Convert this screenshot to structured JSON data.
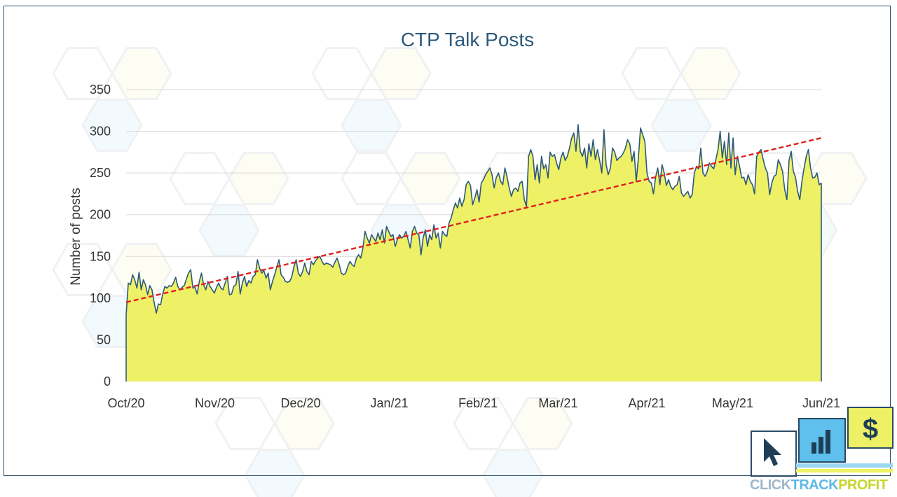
{
  "chart_data": {
    "type": "area",
    "title": "CTP Talk Posts",
    "xlabel": "",
    "ylabel": "Number of posts",
    "x_start": "2020-10-01",
    "x_end": "2021-06-01",
    "x_ticks": [
      {
        "date": "2020-10-01",
        "label": "Oct/20"
      },
      {
        "date": "2020-11-01",
        "label": "Nov/20"
      },
      {
        "date": "2020-12-01",
        "label": "Dec/20"
      },
      {
        "date": "2021-01-01",
        "label": "Jan/21"
      },
      {
        "date": "2021-02-01",
        "label": "Feb/21"
      },
      {
        "date": "2021-03-01",
        "label": "Mar/21"
      },
      {
        "date": "2021-04-01",
        "label": "Apr/21"
      },
      {
        "date": "2021-05-01",
        "label": "May/21"
      },
      {
        "date": "2021-06-01",
        "label": "Jun/21"
      }
    ],
    "ylim": [
      0,
      350
    ],
    "y_ticks": [
      0,
      50,
      100,
      150,
      200,
      250,
      300,
      350
    ],
    "grid": true,
    "legend": "none",
    "area_color": "#eef065",
    "line_color": "#2d5a7a",
    "trend_color": "#e02020",
    "series": [
      {
        "values": [
          80,
          118,
          116,
          128,
          122,
          112,
          131,
          110,
          122,
          116,
          104,
          115,
          110,
          95,
          82,
          93,
          92,
          105,
          114,
          112,
          115,
          114,
          118,
          125,
          114,
          110,
          113,
          115,
          123,
          130,
          134,
          112,
          113,
          105,
          120,
          130,
          116,
          110,
          120,
          114,
          110,
          106,
          113,
          118,
          112,
          110,
          118,
          126,
          104,
          105,
          114,
          116,
          132,
          105,
          118,
          126,
          114,
          121,
          118,
          126,
          128,
          146,
          136,
          130,
          133,
          124,
          130,
          110,
          120,
          128,
          137,
          146,
          128,
          125,
          120,
          119,
          120,
          126,
          138,
          146,
          130,
          126,
          132,
          142,
          132,
          128,
          144,
          140,
          145,
          148,
          150,
          144,
          140,
          142,
          141,
          140,
          137,
          143,
          148,
          140,
          130,
          128,
          130,
          138,
          144,
          140,
          138,
          148,
          152,
          148,
          160,
          180,
          172,
          166,
          176,
          172,
          168,
          178,
          170,
          182,
          166,
          186,
          180,
          174,
          176,
          162,
          170,
          176,
          172,
          174,
          180,
          170,
          160,
          180,
          186,
          178,
          176,
          152,
          172,
          182,
          162,
          176,
          170,
          188,
          172,
          178,
          160,
          180,
          176,
          174,
          190,
          196,
          206,
          214,
          208,
          220,
          210,
          218,
          236,
          240,
          235,
          212,
          220,
          230,
          215,
          238,
          242,
          248,
          252,
          256,
          248,
          232,
          245,
          250,
          240,
          236,
          256,
          245,
          232,
          222,
          230,
          232,
          228,
          238,
          240,
          218,
          210,
          270,
          278,
          270,
          242,
          260,
          238,
          270,
          255,
          260,
          244,
          275,
          270,
          272,
          262,
          254,
          268,
          275,
          265,
          270,
          280,
          292,
          298,
          276,
          308,
          276,
          270,
          280,
          256,
          285,
          270,
          290,
          266,
          278,
          265,
          250,
          302,
          260,
          248,
          256,
          280,
          275,
          265,
          268,
          270,
          274,
          280,
          290,
          285,
          264,
          276,
          240,
          268,
          304,
          296,
          288,
          250,
          240,
          238,
          225,
          245,
          256,
          236,
          260,
          250,
          235,
          242,
          234,
          230,
          234,
          236,
          246,
          226,
          222,
          225,
          228,
          220,
          224,
          250,
          258,
          255,
          280,
          250,
          246,
          252,
          262,
          258,
          255,
          266,
          278,
          300,
          268,
          288,
          260,
          298,
          256,
          292,
          248,
          270,
          258,
          244,
          245,
          236,
          248,
          240,
          236,
          225,
          270,
          275,
          278,
          266,
          256,
          250,
          224,
          238,
          246,
          248,
          266,
          260,
          252,
          230,
          218,
          265,
          276,
          252,
          245,
          228,
          218,
          240,
          256,
          270,
          278,
          256,
          244,
          245,
          250,
          236,
          238
        ],
        "trend": [
          95,
          292
        ]
      }
    ]
  }
}
